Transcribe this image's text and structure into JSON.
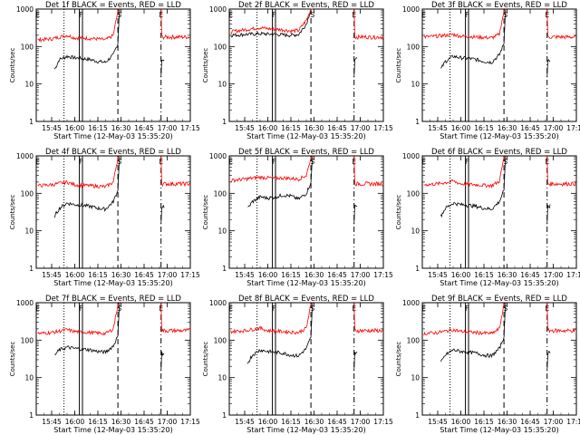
{
  "chart_data": [
    {
      "type": "line",
      "title": "Det 1f BLACK = Events, RED = LLD",
      "xlabel": "Start Time (12-May-03 15:35:20)",
      "ylabel": "Counts/sec",
      "xticks": [
        "15:45",
        "16:00",
        "16:15",
        "16:30",
        "16:45",
        "17:00",
        "17:15"
      ],
      "yticks": [
        "1",
        "10",
        "100",
        "1000"
      ],
      "ylim": [
        1,
        1000
      ],
      "markers": [
        "E",
        "F",
        "S",
        "E"
      ],
      "series": [
        {
          "name": "Events",
          "color": "#000000",
          "x": [
            "15:47",
            "15:50",
            "15:55",
            "16:00",
            "16:05",
            "16:10",
            "16:15",
            "16:20",
            "16:25",
            "16:28"
          ],
          "y": [
            25,
            45,
            55,
            50,
            48,
            45,
            40,
            38,
            60,
            120
          ]
        },
        {
          "name": "LLD",
          "color": "#ff0000",
          "x": [
            "15:36",
            "15:45",
            "15:55",
            "16:00",
            "16:05",
            "16:10",
            "16:15",
            "16:20",
            "16:25",
            "16:28"
          ],
          "y": [
            150,
            160,
            200,
            170,
            170,
            165,
            160,
            150,
            200,
            900
          ]
        }
      ]
    },
    {
      "type": "line",
      "title": "Det 2f BLACK = Events, RED = LLD",
      "xlabel": "Start Time (12-May-03 15:35:20)",
      "ylabel": "Counts/sec",
      "xticks": [
        "15:45",
        "16:00",
        "16:15",
        "16:30",
        "16:45",
        "17:00",
        "17:15"
      ],
      "yticks": [
        "1",
        "10",
        "100",
        "1000"
      ],
      "ylim": [
        1,
        1000
      ],
      "markers": [
        "E",
        "F",
        "S",
        "E"
      ],
      "series": [
        {
          "name": "Events",
          "color": "#000000",
          "x": [
            "15:36",
            "15:45",
            "15:55",
            "16:00",
            "16:05",
            "16:10",
            "16:15",
            "16:20",
            "16:25",
            "16:28"
          ],
          "y": [
            200,
            210,
            220,
            215,
            210,
            205,
            200,
            210,
            400,
            1000
          ]
        },
        {
          "name": "LLD",
          "color": "#ff0000",
          "x": [
            "15:36",
            "15:45",
            "15:55",
            "16:00",
            "16:05",
            "16:10",
            "16:15",
            "16:20",
            "16:25",
            "16:28"
          ],
          "y": [
            250,
            280,
            320,
            300,
            290,
            280,
            260,
            270,
            500,
            1000
          ]
        }
      ]
    },
    {
      "type": "line",
      "title": "Det 3f BLACK = Events, RED = LLD",
      "xlabel": "Start Time (12-May-03 15:35:20)",
      "ylabel": "Counts/sec",
      "xticks": [
        "15:45",
        "16:00",
        "16:15",
        "16:30",
        "16:45",
        "17:00",
        "17:15"
      ],
      "yticks": [
        "1",
        "10",
        "100",
        "1000"
      ],
      "ylim": [
        1,
        1000
      ],
      "markers": [
        "E",
        "F",
        "S",
        "E"
      ],
      "series": [
        {
          "name": "Events",
          "color": "#000000",
          "x": [
            "15:47",
            "15:50",
            "15:55",
            "16:00",
            "16:05",
            "16:10",
            "16:15",
            "16:20",
            "16:25",
            "16:28"
          ],
          "y": [
            25,
            40,
            55,
            50,
            48,
            45,
            40,
            38,
            60,
            120
          ]
        },
        {
          "name": "LLD",
          "color": "#ff0000",
          "x": [
            "15:36",
            "15:45",
            "15:55",
            "16:00",
            "16:05",
            "16:10",
            "16:15",
            "16:20",
            "16:25",
            "16:28"
          ],
          "y": [
            180,
            190,
            210,
            190,
            185,
            180,
            175,
            170,
            210,
            900
          ]
        }
      ]
    },
    {
      "type": "line",
      "title": "Det 4f BLACK = Events, RED = LLD",
      "xlabel": "Start Time (12-May-03 15:35:20)",
      "ylabel": "Counts/sec",
      "xticks": [
        "15:45",
        "16:00",
        "16:15",
        "16:30",
        "16:45",
        "17:00",
        "17:15"
      ],
      "yticks": [
        "1",
        "10",
        "100",
        "1000"
      ],
      "ylim": [
        1,
        1000
      ],
      "markers": [
        "E",
        "F",
        "S",
        "E"
      ],
      "series": [
        {
          "name": "Events",
          "color": "#000000",
          "x": [
            "15:47",
            "15:50",
            "15:55",
            "16:00",
            "16:05",
            "16:10",
            "16:15",
            "16:20",
            "16:25",
            "16:28"
          ],
          "y": [
            25,
            40,
            55,
            50,
            48,
            45,
            40,
            38,
            60,
            120
          ]
        },
        {
          "name": "LLD",
          "color": "#ff0000",
          "x": [
            "15:36",
            "15:45",
            "15:55",
            "16:00",
            "16:05",
            "16:10",
            "16:15",
            "16:20",
            "16:25",
            "16:28"
          ],
          "y": [
            160,
            170,
            200,
            170,
            165,
            160,
            155,
            150,
            200,
            900
          ]
        }
      ]
    },
    {
      "type": "line",
      "title": "Det 5f BLACK = Events, RED = LLD",
      "xlabel": "Start Time (12-May-03 15:35:20)",
      "ylabel": "Counts/sec",
      "xticks": [
        "15:45",
        "16:00",
        "16:15",
        "16:30",
        "16:45",
        "17:00",
        "17:15"
      ],
      "yticks": [
        "1",
        "10",
        "100",
        "1000"
      ],
      "ylim": [
        1,
        1000
      ],
      "markers": [
        "E",
        "F",
        "S",
        "E"
      ],
      "series": [
        {
          "name": "Events",
          "color": "#000000",
          "x": [
            "15:47",
            "15:50",
            "15:55",
            "16:00",
            "16:05",
            "16:10",
            "16:15",
            "16:20",
            "16:25",
            "16:28"
          ],
          "y": [
            40,
            60,
            80,
            75,
            80,
            90,
            85,
            70,
            100,
            200
          ]
        },
        {
          "name": "LLD",
          "color": "#ff0000",
          "x": [
            "15:36",
            "15:45",
            "15:55",
            "16:00",
            "16:05",
            "16:10",
            "16:15",
            "16:20",
            "16:25",
            "16:28"
          ],
          "y": [
            220,
            240,
            270,
            260,
            250,
            260,
            250,
            240,
            300,
            900
          ]
        }
      ]
    },
    {
      "type": "line",
      "title": "Det 6f BLACK = Events, RED = LLD",
      "xlabel": "Start Time (12-May-03 15:35:20)",
      "ylabel": "Counts/sec",
      "xticks": [
        "15:45",
        "16:00",
        "16:15",
        "16:30",
        "16:45",
        "17:00",
        "17:15"
      ],
      "yticks": [
        "1",
        "10",
        "100",
        "1000"
      ],
      "ylim": [
        1,
        1000
      ],
      "markers": [
        "E",
        "F",
        "S",
        "E"
      ],
      "series": [
        {
          "name": "Events",
          "color": "#000000",
          "x": [
            "15:47",
            "15:50",
            "15:55",
            "16:00",
            "16:05",
            "16:10",
            "16:15",
            "16:20",
            "16:25",
            "16:28"
          ],
          "y": [
            25,
            40,
            55,
            50,
            48,
            45,
            40,
            38,
            60,
            120
          ]
        },
        {
          "name": "LLD",
          "color": "#ff0000",
          "x": [
            "15:36",
            "15:45",
            "15:55",
            "16:00",
            "16:05",
            "16:10",
            "16:15",
            "16:20",
            "16:25",
            "16:28"
          ],
          "y": [
            170,
            180,
            210,
            180,
            175,
            170,
            165,
            160,
            210,
            900
          ]
        }
      ]
    },
    {
      "type": "line",
      "title": "Det 7f BLACK = Events, RED = LLD",
      "xlabel": "Start Time (12-May-03 15:35:20)",
      "ylabel": "Counts/sec",
      "xticks": [
        "15:45",
        "16:00",
        "16:15",
        "16:30",
        "16:45",
        "17:00",
        "17:15"
      ],
      "yticks": [
        "1",
        "10",
        "100",
        "1000"
      ],
      "ylim": [
        1,
        1000
      ],
      "markers": [
        "E",
        "F",
        "S",
        "E"
      ],
      "series": [
        {
          "name": "Events",
          "color": "#000000",
          "x": [
            "15:47",
            "15:50",
            "15:55",
            "16:00",
            "16:05",
            "16:10",
            "16:15",
            "16:20",
            "16:25",
            "16:28"
          ],
          "y": [
            40,
            55,
            65,
            60,
            58,
            55,
            50,
            48,
            70,
            130
          ]
        },
        {
          "name": "LLD",
          "color": "#ff0000",
          "x": [
            "15:36",
            "15:45",
            "15:55",
            "16:00",
            "16:05",
            "16:10",
            "16:15",
            "16:20",
            "16:25",
            "16:28"
          ],
          "y": [
            150,
            160,
            190,
            170,
            165,
            160,
            155,
            150,
            200,
            900
          ]
        }
      ]
    },
    {
      "type": "line",
      "title": "Det 8f BLACK = Events, RED = LLD",
      "xlabel": "Start Time (12-May-03 15:35:20)",
      "ylabel": "Counts/sec",
      "xticks": [
        "15:45",
        "16:00",
        "16:15",
        "16:30",
        "16:45",
        "17:00",
        "17:15"
      ],
      "yticks": [
        "1",
        "10",
        "100",
        "1000"
      ],
      "ylim": [
        1,
        1000
      ],
      "markers": [
        "E",
        "F",
        "S",
        "E"
      ],
      "series": [
        {
          "name": "Events",
          "color": "#000000",
          "x": [
            "15:47",
            "15:50",
            "15:55",
            "16:00",
            "16:05",
            "16:10",
            "16:15",
            "16:20",
            "16:25",
            "16:28"
          ],
          "y": [
            25,
            40,
            55,
            50,
            48,
            45,
            40,
            38,
            60,
            120
          ]
        },
        {
          "name": "LLD",
          "color": "#ff0000",
          "x": [
            "15:36",
            "15:45",
            "15:55",
            "16:00",
            "16:05",
            "16:10",
            "16:15",
            "16:20",
            "16:25",
            "16:28"
          ],
          "y": [
            170,
            180,
            210,
            180,
            175,
            170,
            165,
            160,
            210,
            900
          ]
        }
      ]
    },
    {
      "type": "line",
      "title": "Det 9f BLACK = Events, RED = LLD",
      "xlabel": "Start Time (12-May-03 15:35:20)",
      "ylabel": "Counts/sec",
      "xticks": [
        "15:45",
        "16:00",
        "16:15",
        "16:30",
        "16:45",
        "17:00",
        "17:15"
      ],
      "yticks": [
        "1",
        "10",
        "100",
        "1000"
      ],
      "ylim": [
        1,
        1000
      ],
      "markers": [
        "E",
        "F",
        "S",
        "E"
      ],
      "series": [
        {
          "name": "Events",
          "color": "#000000",
          "x": [
            "15:47",
            "15:50",
            "15:55",
            "16:00",
            "16:05",
            "16:10",
            "16:15",
            "16:20",
            "16:25",
            "16:28"
          ],
          "y": [
            25,
            40,
            55,
            50,
            48,
            45,
            40,
            38,
            60,
            120
          ]
        },
        {
          "name": "LLD",
          "color": "#ff0000",
          "x": [
            "15:36",
            "15:45",
            "15:55",
            "16:00",
            "16:05",
            "16:10",
            "16:15",
            "16:20",
            "16:25",
            "16:28"
          ],
          "y": [
            150,
            160,
            190,
            170,
            165,
            160,
            155,
            150,
            200,
            900
          ]
        }
      ]
    }
  ]
}
